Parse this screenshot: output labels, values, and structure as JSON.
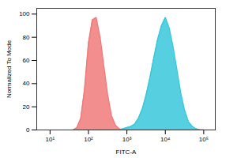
{
  "chart_data": {
    "type": "area",
    "x_label": "FITC-A",
    "y_label": "Normalized To Mode",
    "log": "x",
    "xlim": [
      4.5,
      200000
    ],
    "xticks": [
      {
        "value": 10,
        "label": "10¹"
      },
      {
        "value": 100,
        "label": "10²"
      },
      {
        "value": 1000,
        "label": "10³"
      },
      {
        "value": 10000,
        "label": "10⁴"
      },
      {
        "value": 100000,
        "label": "10⁵"
      }
    ],
    "ylim": [
      0,
      105
    ],
    "yticks": [
      0,
      20,
      40,
      60,
      80,
      100
    ],
    "x": [
      40,
      50,
      63,
      79,
      100,
      126,
      158,
      200,
      251,
      316,
      398,
      501,
      631,
      794,
      1000,
      1259,
      1585,
      1995,
      2512,
      3162,
      3981,
      5012,
      6310,
      7943,
      10000,
      12589,
      15849,
      19953,
      25119,
      31623,
      39811,
      50119,
      63096,
      79433,
      100000
    ],
    "series": [
      {
        "color": "#f07a7a",
        "values": [
          0,
          2,
          10,
          35,
          75,
          95,
          97,
          80,
          55,
          30,
          12,
          4,
          1,
          0,
          0,
          0,
          0,
          0,
          0,
          0,
          0,
          0,
          0,
          0,
          0,
          0,
          0,
          0,
          0,
          0,
          0,
          0,
          0,
          0,
          0
        ]
      },
      {
        "color": "#38c8dc",
        "values": [
          0,
          0,
          0,
          0,
          0,
          0,
          0,
          0,
          0,
          0,
          0,
          0,
          0,
          1,
          2,
          3,
          5,
          10,
          18,
          30,
          45,
          62,
          78,
          90,
          97,
          88,
          72,
          52,
          32,
          17,
          7,
          3,
          1,
          0,
          0
        ]
      }
    ]
  }
}
